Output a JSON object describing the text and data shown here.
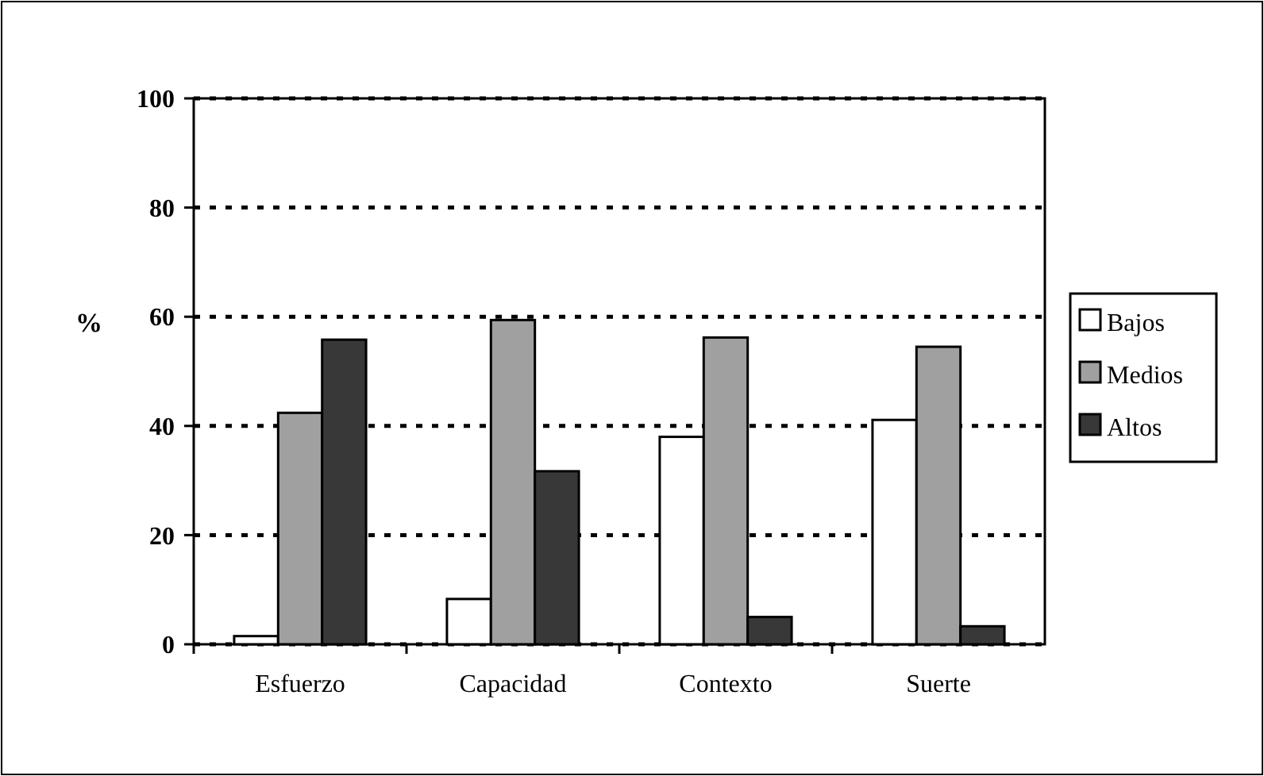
{
  "chart_data": {
    "type": "bar",
    "ylabel": "%",
    "categories": [
      "Esfuerzo",
      "Capacidad",
      "Contexto",
      "Suerte"
    ],
    "series": [
      {
        "name": "Bajos",
        "color": "#ffffff",
        "values": [
          1.5,
          8.3,
          38,
          41.1
        ]
      },
      {
        "name": "Medios",
        "color": "#a0a0a0",
        "values": [
          42.4,
          59.4,
          56.2,
          54.5
        ]
      },
      {
        "name": "Altos",
        "color": "#383838",
        "values": [
          55.8,
          31.7,
          5,
          3.3
        ]
      }
    ],
    "ylim": [
      0,
      100
    ],
    "yticks": [
      0,
      20,
      40,
      60,
      80,
      100
    ],
    "grid": "y",
    "line_style": "dashed",
    "legend": "right"
  }
}
